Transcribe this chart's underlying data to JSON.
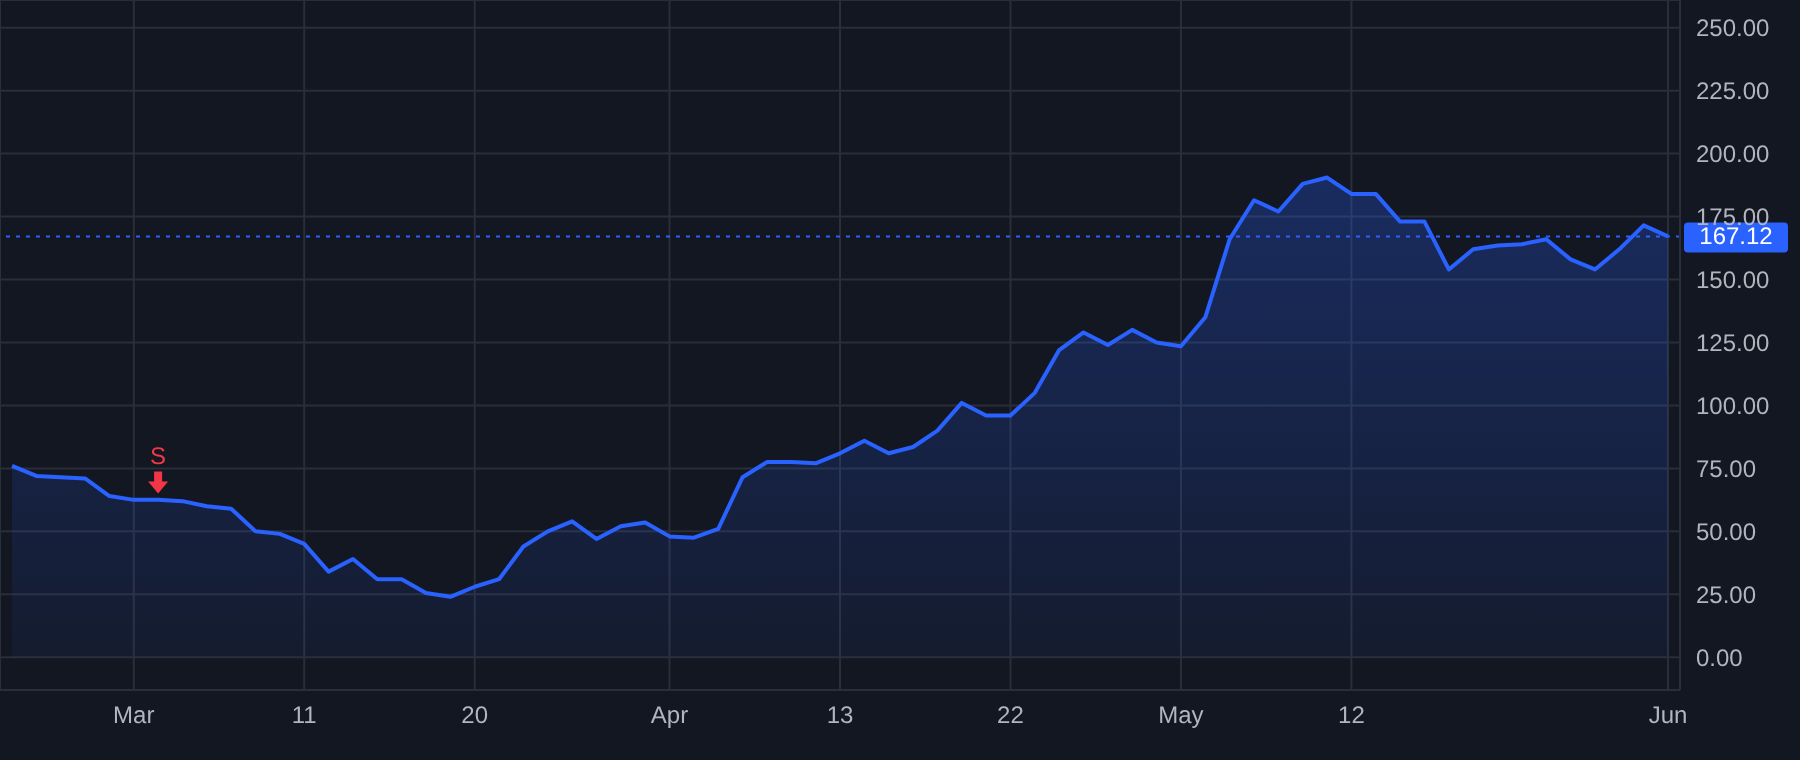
{
  "chart_data": {
    "type": "area",
    "categories": [
      null,
      null,
      null,
      null,
      null,
      "Mar",
      null,
      null,
      null,
      null,
      null,
      null,
      "11",
      null,
      null,
      null,
      null,
      null,
      null,
      "20",
      null,
      null,
      null,
      null,
      null,
      null,
      null,
      "Apr",
      null,
      null,
      null,
      null,
      null,
      null,
      "13",
      null,
      null,
      null,
      null,
      null,
      null,
      "22",
      null,
      null,
      null,
      null,
      null,
      null,
      "May",
      null,
      null,
      null,
      null,
      null,
      null,
      "12",
      null,
      null,
      null,
      null,
      null,
      null,
      null,
      null,
      null,
      null,
      null,
      null,
      "Jun"
    ],
    "series": [
      {
        "color": "#2962ff",
        "values": [
          76,
          72,
          71.5,
          71,
          64,
          62.5,
          62.5,
          62,
          60,
          59,
          50,
          49,
          45,
          34,
          39,
          31,
          31,
          25.5,
          24,
          28,
          31,
          44,
          50,
          54,
          47,
          52,
          53.5,
          48,
          47.5,
          51,
          71.5,
          77.5,
          77.5,
          77,
          81,
          86,
          81,
          83.5,
          90,
          101,
          96,
          96,
          105,
          122,
          129,
          124,
          130,
          125,
          123.5,
          135,
          166,
          181.5,
          177,
          188,
          190.5,
          184,
          184,
          173,
          173,
          154,
          162,
          163.5,
          164,
          166,
          158,
          154,
          162,
          171.5,
          167.12
        ]
      },
      {
        "type": "scatter",
        "name": "S",
        "color": "#f23645",
        "values": [
          null,
          null,
          null,
          null,
          null,
          null,
          69,
          null,
          null,
          null,
          null,
          null,
          null,
          null,
          null,
          null,
          null,
          null,
          null,
          null,
          null,
          null,
          null,
          null,
          null,
          null,
          null,
          null,
          null,
          null,
          null,
          null,
          null,
          null,
          null,
          null,
          null,
          null,
          null,
          null,
          null,
          null,
          null,
          null,
          null,
          null,
          null,
          null,
          null,
          null,
          null,
          null,
          null,
          null,
          null,
          null,
          null,
          null,
          null,
          null,
          null,
          null,
          null,
          null,
          null,
          null,
          null,
          null,
          null
        ]
      }
    ],
    "ylim": [
      -13,
      261
    ],
    "yticks": [
      {
        "value": 0,
        "label": "0.00"
      },
      {
        "value": 25,
        "label": "25.00"
      },
      {
        "value": 50,
        "label": "50.00"
      },
      {
        "value": 75,
        "label": "75.00"
      },
      {
        "value": 100,
        "label": "100.00"
      },
      {
        "value": 125,
        "label": "125.00"
      },
      {
        "value": 150,
        "label": "150.00"
      },
      {
        "value": 175,
        "label": "175.00"
      },
      {
        "value": 200,
        "label": "200.00"
      },
      {
        "value": 225,
        "label": "225.00"
      },
      {
        "value": 250,
        "label": "250.00"
      }
    ],
    "grid": true,
    "ref_lines": [
      {
        "axis": "y",
        "value": 167.12,
        "label": "167.12",
        "color": "#2962ff",
        "line_style": "dotted"
      }
    ]
  }
}
